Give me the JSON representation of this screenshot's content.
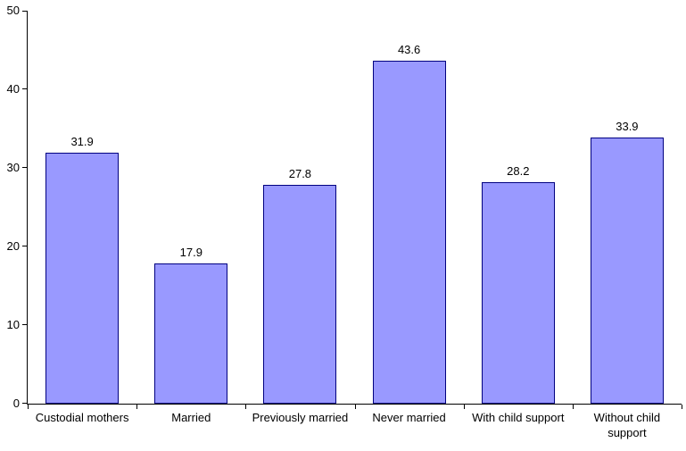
{
  "chart_data": {
    "type": "bar",
    "title": "",
    "xlabel": "",
    "ylabel": "",
    "categories": [
      "Custodial mothers",
      "Married",
      "Previously married",
      "Never married",
      "With child support",
      "Without child support"
    ],
    "values": [
      31.9,
      17.9,
      27.8,
      43.6,
      28.2,
      33.9
    ],
    "value_labels": [
      "31.9",
      "17.9",
      "27.8",
      "43.6",
      "28.2",
      "33.9"
    ],
    "ylim": [
      0,
      50
    ],
    "yticks": [
      "0",
      "10",
      "20",
      "30",
      "40",
      "50"
    ],
    "grid": false,
    "legend": false,
    "colors": {
      "bar_fill": "#9999FF",
      "bar_border": "#000080",
      "axis": "#000000",
      "text": "#000000",
      "background": "#FFFFFF"
    }
  }
}
